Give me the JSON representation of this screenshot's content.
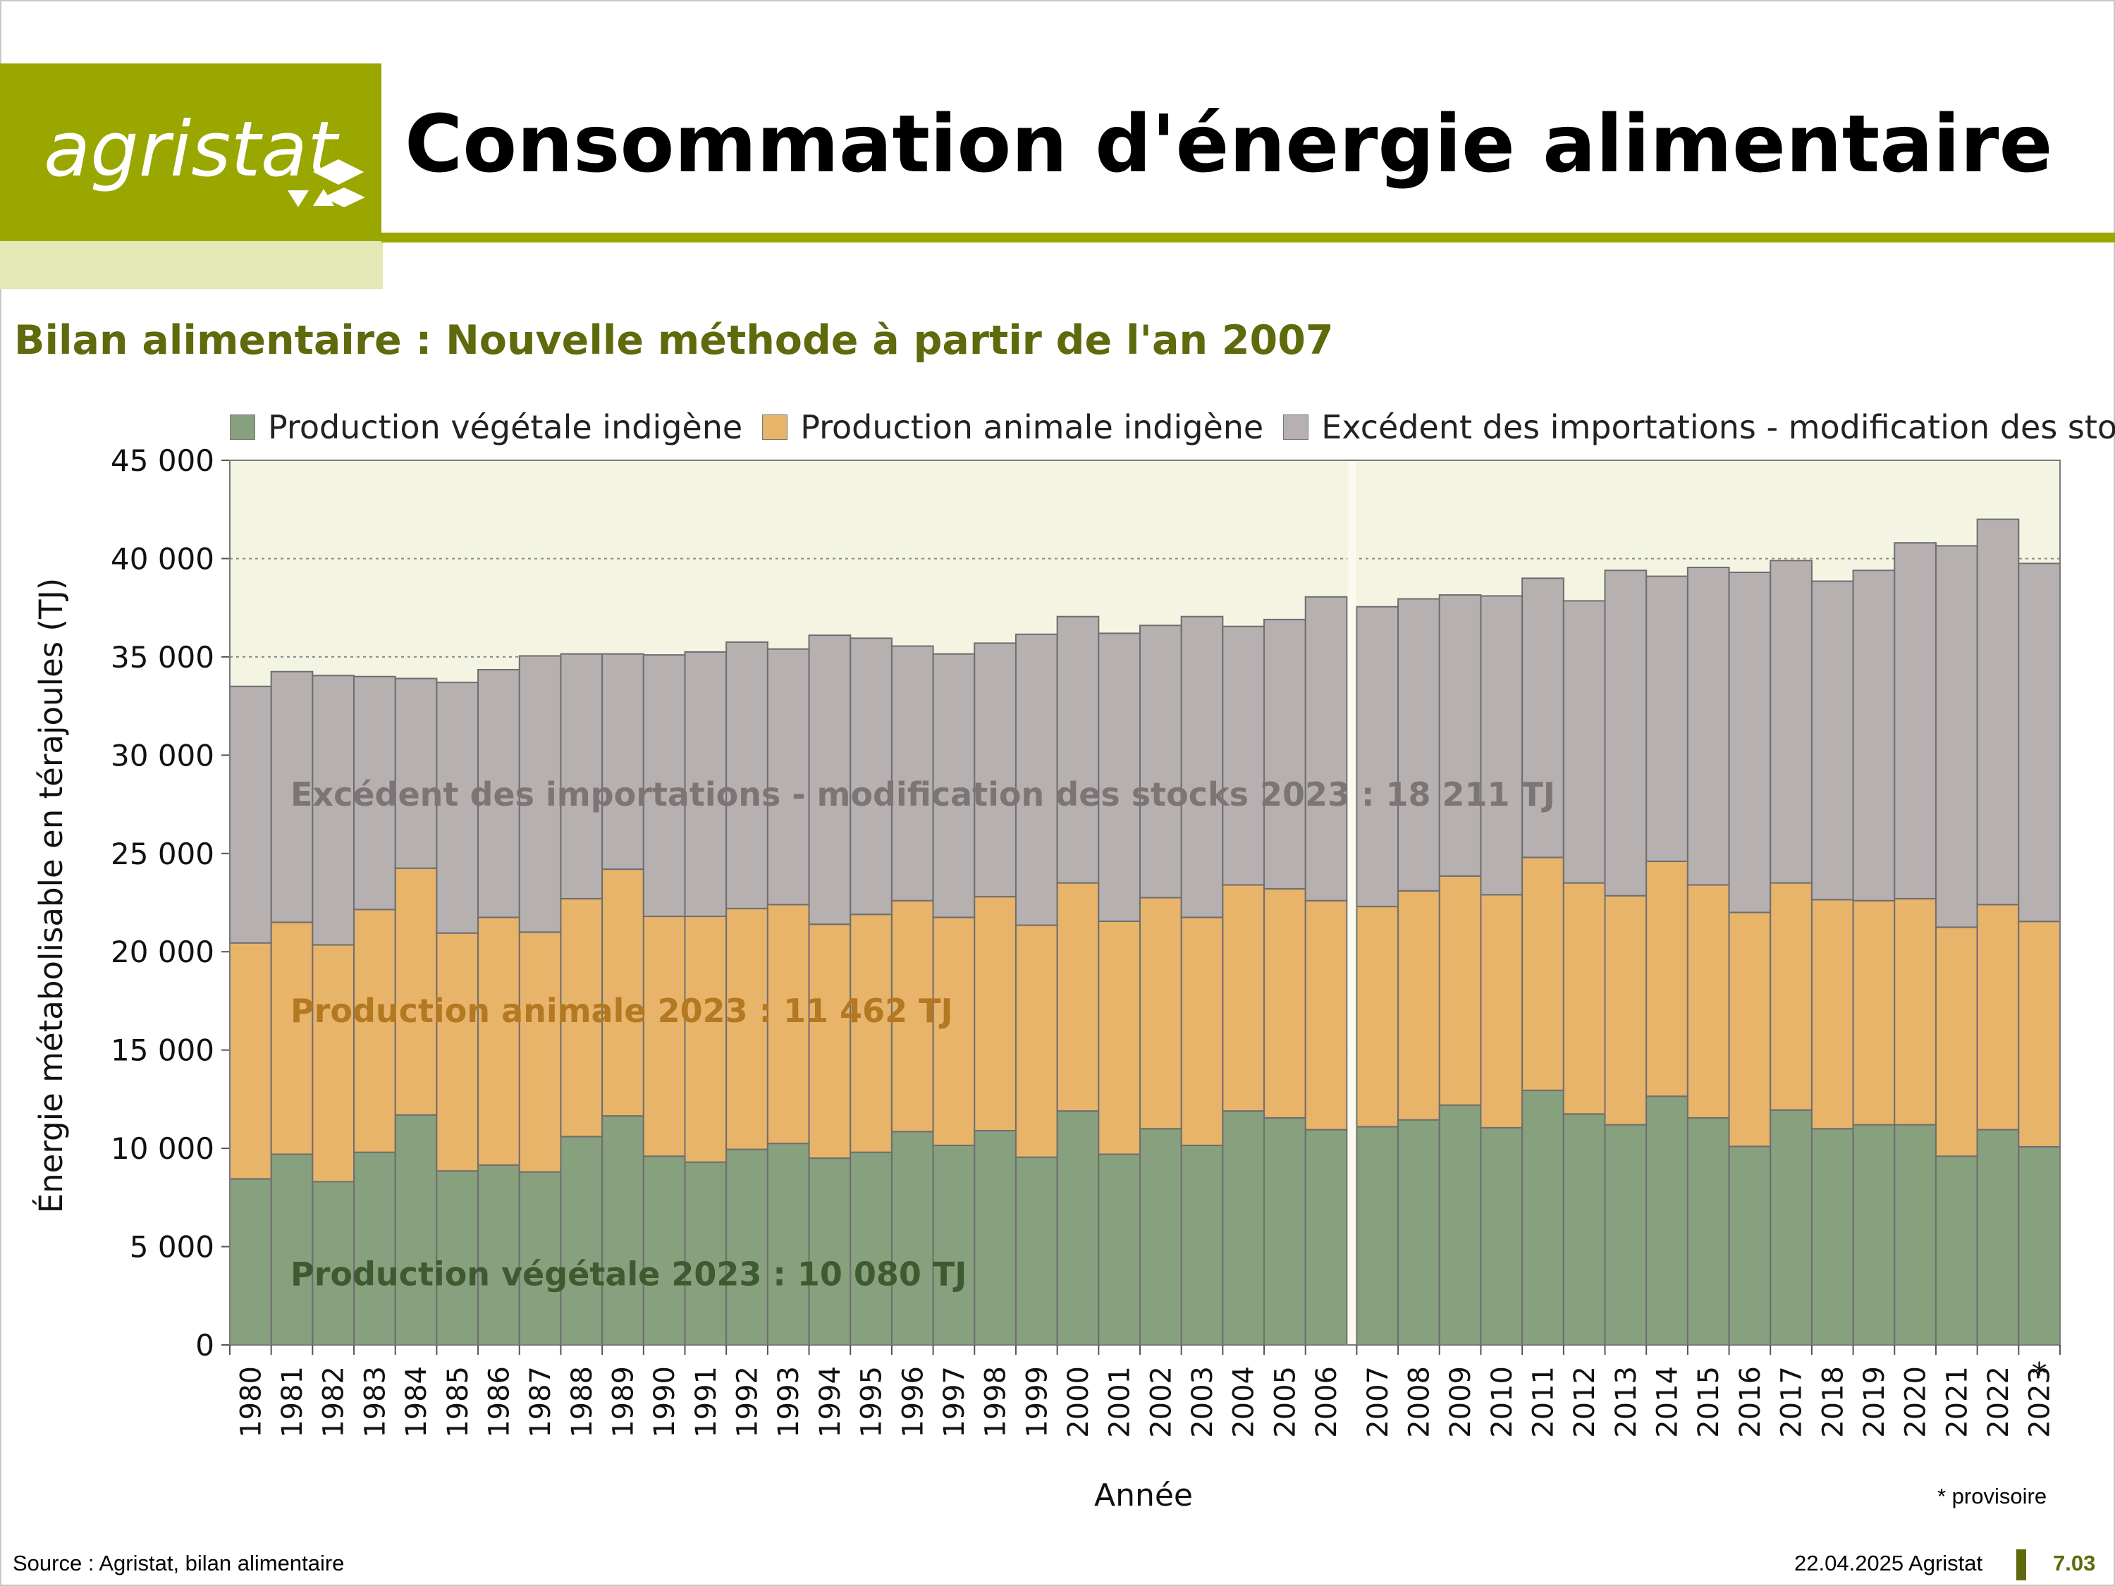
{
  "header": {
    "logo_text": "agristat",
    "title": "Consommation d'énergie alimentaire",
    "subtitle": "Bilan alimentaire : Nouvelle méthode à partir de l'an 2007"
  },
  "colors": {
    "brand": "#9aa700",
    "brand_dark": "#5f6a0c",
    "brand_light": "#e3e8b4",
    "plot_bg": "#f3f4e2",
    "vegetal": "#87a07e",
    "animal": "#e8b46a",
    "imports": "#b7b0b0"
  },
  "legend": [
    {
      "label": "Production végétale indigène",
      "color": "#87a07e"
    },
    {
      "label": "Production animale indigène",
      "color": "#e8b46a"
    },
    {
      "label": "Excédent des importations - modification des stocks",
      "color": "#b7b0b0"
    }
  ],
  "chart_data": {
    "type": "bar",
    "stacked": true,
    "xlabel": "Année",
    "ylabel": "Énergie métabolisable en térajoules (TJ)",
    "ylim": [
      0,
      45000
    ],
    "yticks": [
      "0",
      "5 000",
      "10 000",
      "15 000",
      "20 000",
      "25 000",
      "30 000",
      "35 000",
      "40 000",
      "45 000"
    ],
    "grid": true,
    "legend_position": "top",
    "categories": [
      "1980",
      "1981",
      "1982",
      "1983",
      "1984",
      "1985",
      "1986",
      "1987",
      "1988",
      "1989",
      "1990",
      "1991",
      "1992",
      "1993",
      "1994",
      "1995",
      "1996",
      "1997",
      "1998",
      "1999",
      "2000",
      "2001",
      "2002",
      "2003",
      "2004",
      "2005",
      "2006",
      "2007",
      "2008",
      "2009",
      "2010",
      "2011",
      "2012",
      "2013",
      "2014",
      "2015",
      "2016",
      "2017",
      "2018",
      "2019",
      "2020",
      "2021",
      "2022",
      "2023"
    ],
    "category_break_after": "2006",
    "provisional_marker": {
      "category": "2023",
      "symbol": "*",
      "note": "* provisoire"
    },
    "series": [
      {
        "name": "Production végétale indigène",
        "color": "#87a07e",
        "values": [
          8450,
          9700,
          8300,
          9800,
          11700,
          8850,
          9150,
          8800,
          10600,
          11650,
          9600,
          9300,
          9950,
          10250,
          9500,
          9800,
          10850,
          10150,
          10900,
          9550,
          11900,
          9700,
          11000,
          10150,
          11900,
          11550,
          10950,
          11100,
          11450,
          12200,
          11050,
          12950,
          11750,
          11200,
          12650,
          11550,
          10100,
          11950,
          11000,
          11200,
          11200,
          9600,
          10950,
          10080
        ]
      },
      {
        "name": "Production animale indigène",
        "color": "#e8b46a",
        "values": [
          12000,
          11800,
          12050,
          12350,
          12550,
          12100,
          12600,
          12200,
          12100,
          12550,
          12200,
          12500,
          12250,
          12150,
          11900,
          12100,
          11750,
          11600,
          11900,
          11800,
          11600,
          11850,
          11750,
          11600,
          11500,
          11650,
          11650,
          11200,
          11650,
          11650,
          11850,
          11850,
          11750,
          11650,
          11950,
          11850,
          11900,
          11550,
          11650,
          11400,
          11500,
          11650,
          11450,
          11462
        ]
      },
      {
        "name": "Excédent des importations - modification des stocks",
        "color": "#b7b0b0",
        "values": [
          13050,
          12750,
          13700,
          11850,
          9650,
          12750,
          12600,
          14050,
          12450,
          10950,
          13300,
          13450,
          13550,
          13000,
          14700,
          14050,
          12950,
          13400,
          12900,
          14800,
          13550,
          14650,
          13850,
          15300,
          13150,
          13700,
          15450,
          15250,
          14850,
          14300,
          15200,
          14200,
          14350,
          16550,
          14500,
          16150,
          17300,
          16400,
          16200,
          16800,
          18100,
          19400,
          19600,
          18211
        ]
      }
    ],
    "annotations": [
      {
        "text": "Excédent des importations - modification des stocks 2023 : 18 211 TJ",
        "y": 28000,
        "color": "#7c7575"
      },
      {
        "text": "Production animale 2023 : 11 462 TJ",
        "y": 17000,
        "color": "#b37822"
      },
      {
        "text": "Production végétale 2023 : 10 080 TJ",
        "y": 3600,
        "color": "#3f5a31"
      }
    ]
  },
  "footer": {
    "source": "Source : Agristat, bilan alimentaire",
    "date": "22.04.2025 Agristat",
    "page": "7.03",
    "provisoire": "* provisoire"
  }
}
